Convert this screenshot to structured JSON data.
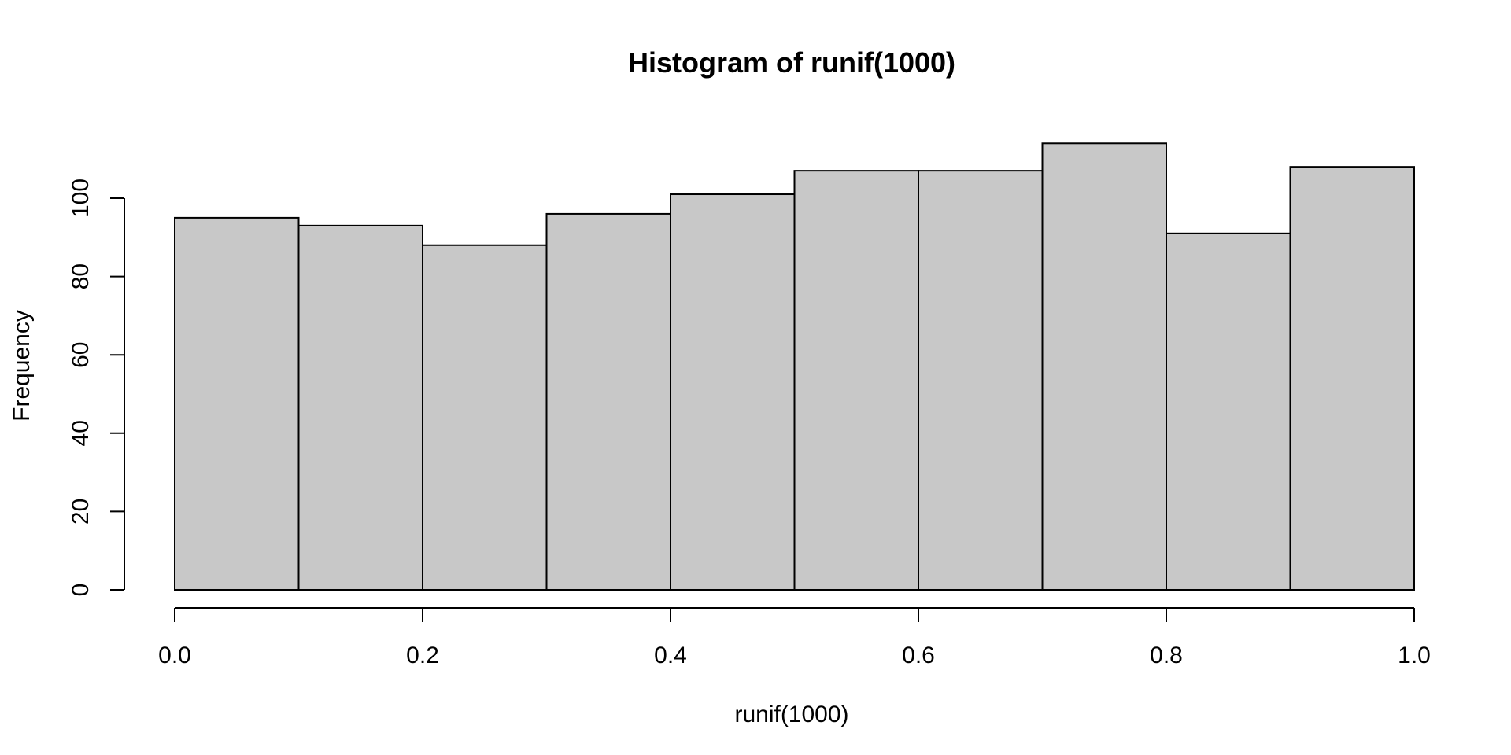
{
  "chart_data": {
    "type": "bar",
    "subtype": "histogram",
    "title": "Histogram of runif(1000)",
    "xlabel": "runif(1000)",
    "ylabel": "Frequency",
    "bin_edges": [
      0.0,
      0.1,
      0.2,
      0.3,
      0.4,
      0.5,
      0.6,
      0.7,
      0.8,
      0.9,
      1.0
    ],
    "values": [
      95,
      93,
      88,
      96,
      101,
      107,
      107,
      114,
      91,
      108
    ],
    "xlim": [
      0.0,
      1.0
    ],
    "ylim": [
      0,
      114
    ],
    "x_ticks": [
      "0.0",
      "0.2",
      "0.4",
      "0.6",
      "0.8",
      "1.0"
    ],
    "y_ticks": [
      "0",
      "20",
      "40",
      "60",
      "80",
      "100"
    ],
    "grid": false,
    "legend": "none",
    "bar_fill": "#c8c8c8",
    "bar_stroke": "#000000"
  }
}
